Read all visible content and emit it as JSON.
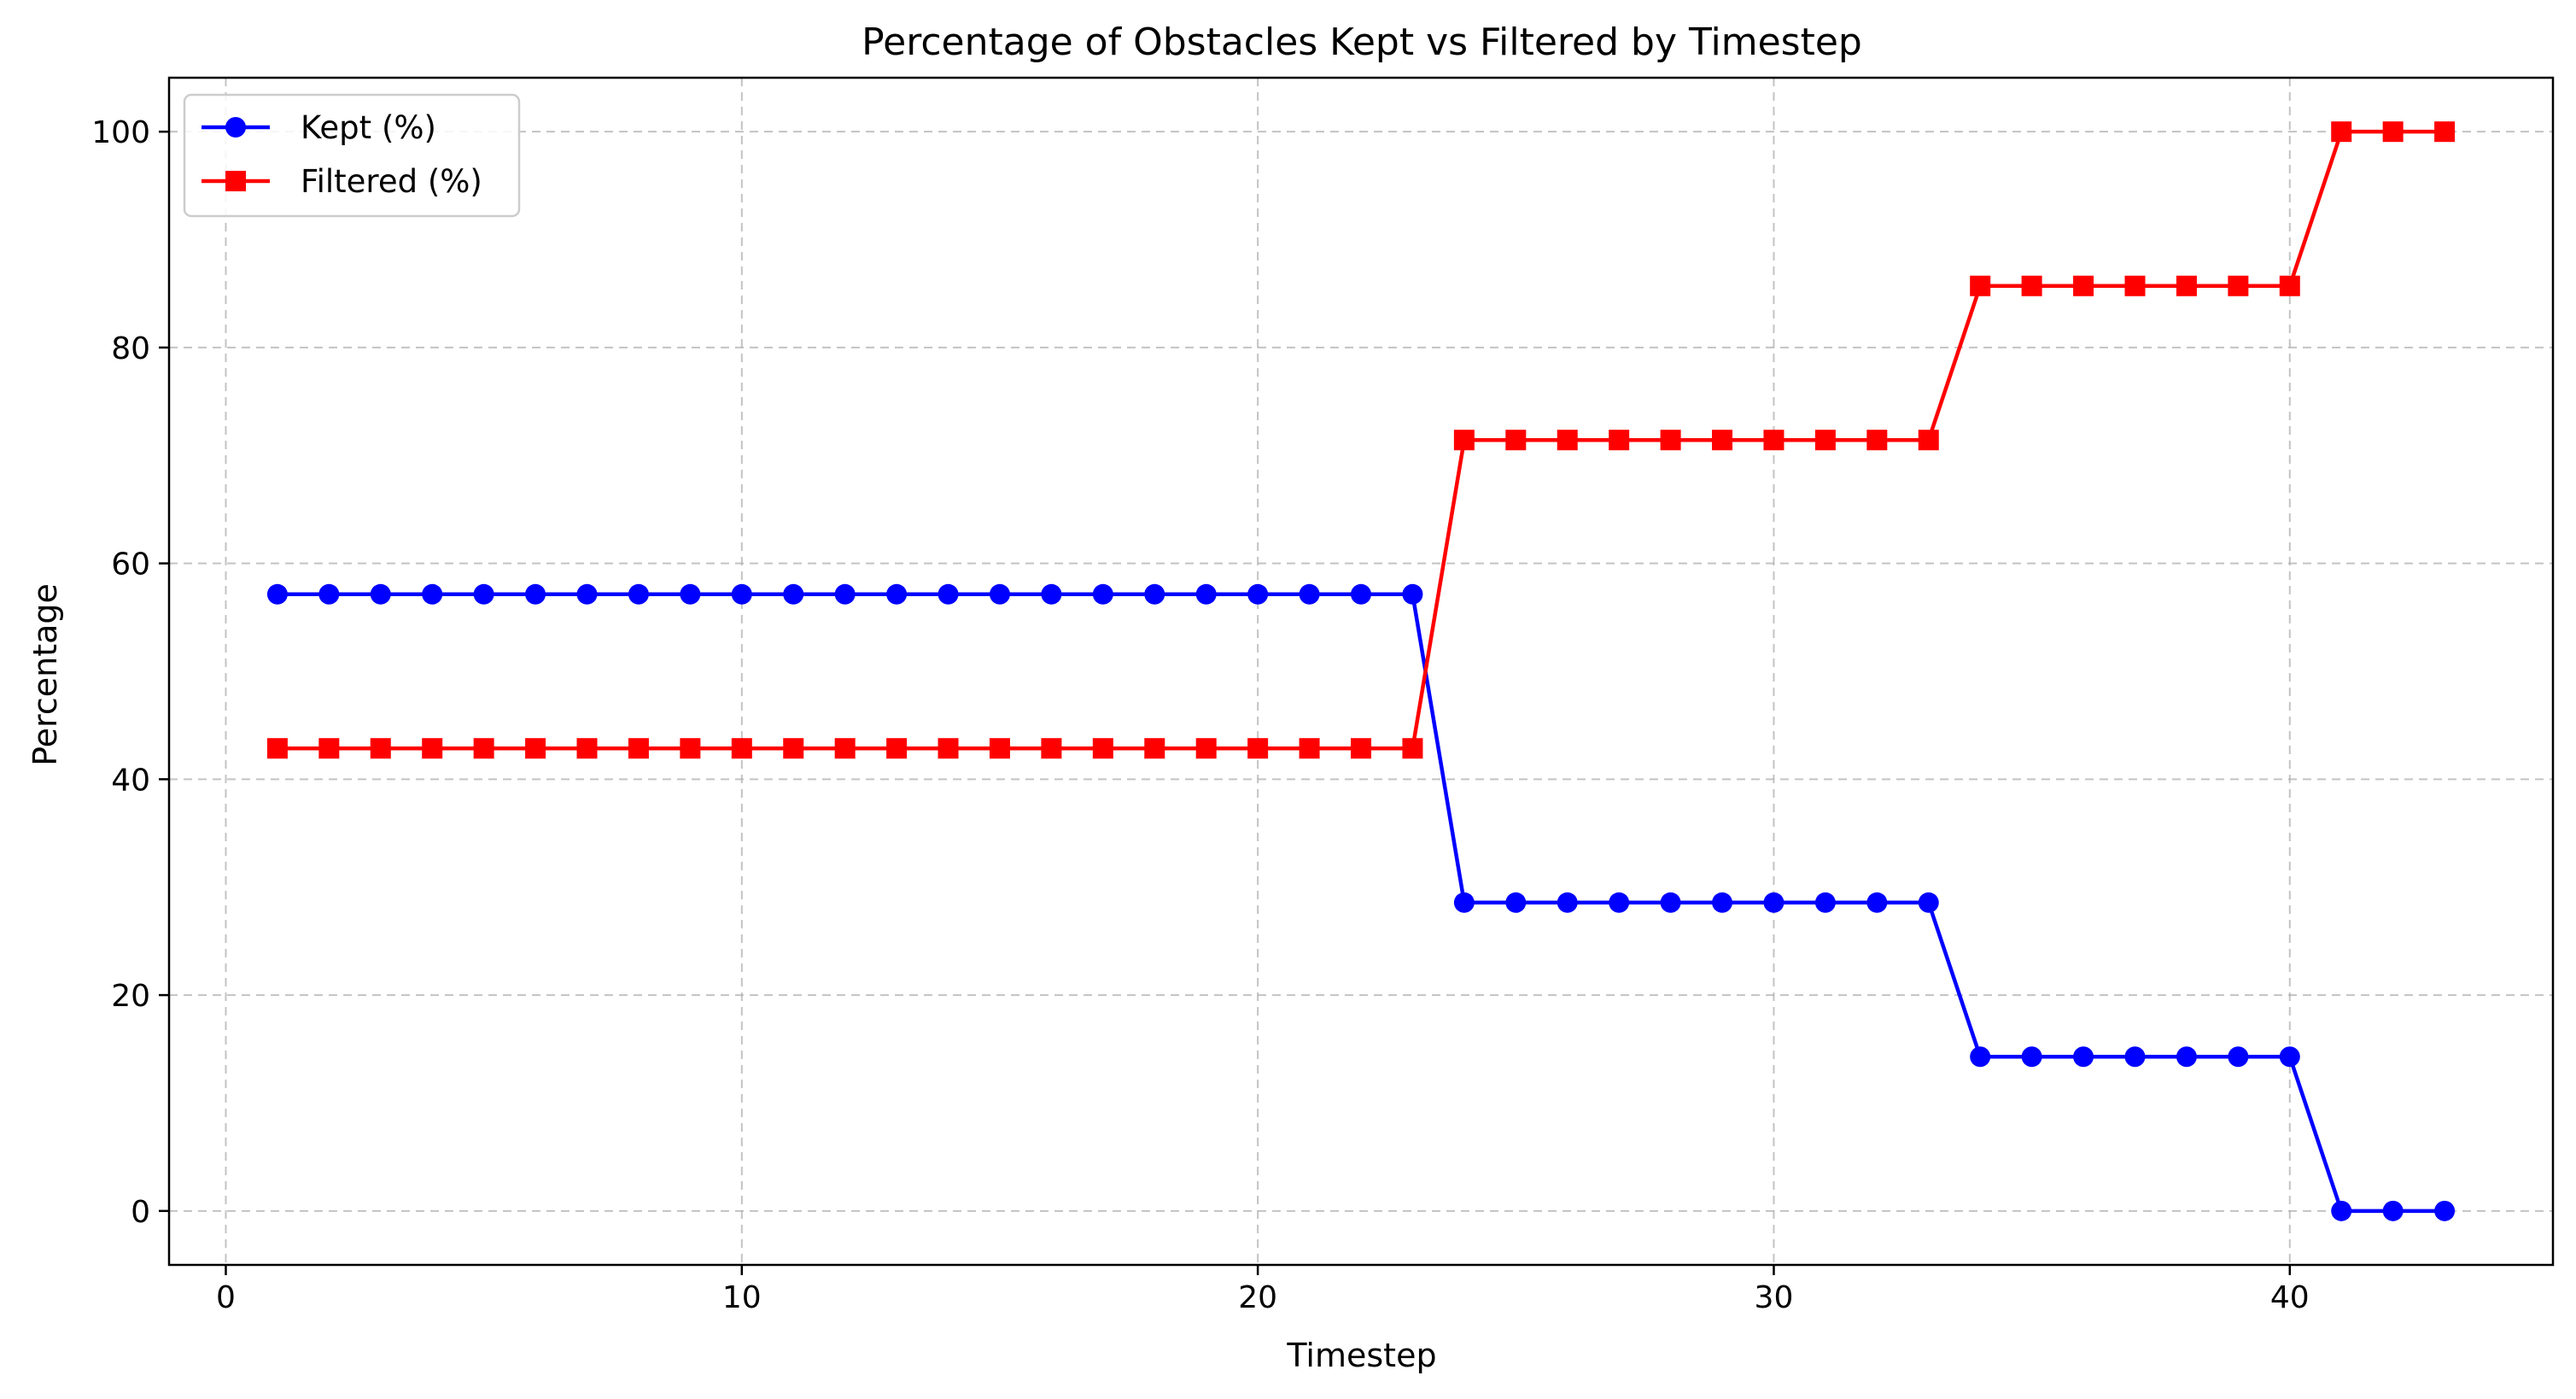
{
  "chart_data": {
    "type": "line",
    "title": "Percentage of Obstacles Kept vs Filtered by Timestep",
    "xlabel": "Timestep",
    "ylabel": "Percentage",
    "xlim": [
      -1.1,
      45.1
    ],
    "ylim": [
      -5,
      105
    ],
    "xticks": [
      0,
      10,
      20,
      30,
      40
    ],
    "yticks": [
      0,
      20,
      40,
      60,
      80,
      100
    ],
    "grid": true,
    "legend_position": "top-left",
    "x": [
      1,
      2,
      3,
      4,
      5,
      6,
      7,
      8,
      9,
      10,
      11,
      12,
      13,
      14,
      15,
      16,
      17,
      18,
      19,
      20,
      21,
      22,
      23,
      24,
      25,
      26,
      27,
      28,
      29,
      30,
      31,
      32,
      33,
      34,
      35,
      36,
      37,
      38,
      39,
      40,
      41,
      42,
      43
    ],
    "series": [
      {
        "name": "Kept (%)",
        "color": "#0000ff",
        "marker": "circle",
        "values": [
          57.14,
          57.14,
          57.14,
          57.14,
          57.14,
          57.14,
          57.14,
          57.14,
          57.14,
          57.14,
          57.14,
          57.14,
          57.14,
          57.14,
          57.14,
          57.14,
          57.14,
          57.14,
          57.14,
          57.14,
          57.14,
          57.14,
          57.14,
          28.57,
          28.57,
          28.57,
          28.57,
          28.57,
          28.57,
          28.57,
          28.57,
          28.57,
          28.57,
          14.29,
          14.29,
          14.29,
          14.29,
          14.29,
          14.29,
          14.29,
          0,
          0,
          0
        ]
      },
      {
        "name": "Filtered (%)",
        "color": "#ff0000",
        "marker": "square",
        "values": [
          42.86,
          42.86,
          42.86,
          42.86,
          42.86,
          42.86,
          42.86,
          42.86,
          42.86,
          42.86,
          42.86,
          42.86,
          42.86,
          42.86,
          42.86,
          42.86,
          42.86,
          42.86,
          42.86,
          42.86,
          42.86,
          42.86,
          42.86,
          71.43,
          71.43,
          71.43,
          71.43,
          71.43,
          71.43,
          71.43,
          71.43,
          71.43,
          71.43,
          85.71,
          85.71,
          85.71,
          85.71,
          85.71,
          85.71,
          85.71,
          100,
          100,
          100
        ]
      }
    ]
  }
}
